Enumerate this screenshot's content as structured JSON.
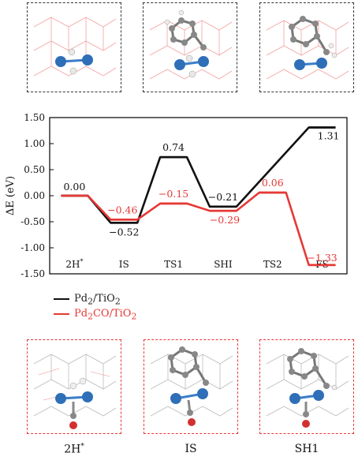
{
  "top_panels": [
    {
      "name": "pd2-tio2-2h",
      "border": "#333333",
      "molecule": "h2"
    },
    {
      "name": "pd2-tio2-ts",
      "border": "#333333",
      "molecule": "benzyl"
    },
    {
      "name": "pd2-tio2-fs",
      "border": "#333333",
      "molecule": "benzyl"
    }
  ],
  "bottom_panels": [
    {
      "name": "pd2co-2h",
      "border": "#e53935",
      "molecule": "h2-co",
      "caption": "2H",
      "caption_sup": "*"
    },
    {
      "name": "pd2co-is",
      "border": "#e53935",
      "molecule": "benzyl-co",
      "caption": "IS",
      "caption_sup": ""
    },
    {
      "name": "pd2co-sh1",
      "border": "#e53935",
      "molecule": "benzyl-co",
      "caption": "SH1",
      "caption_sup": ""
    }
  ],
  "legend": [
    {
      "label": "Pd",
      "sub": "2",
      "label2": "/TiO",
      "sub2": "2",
      "color": "#111111"
    },
    {
      "label": "Pd",
      "sub": "2",
      "label2": "CO/TiO",
      "sub2": "2",
      "color": "#e53935"
    }
  ],
  "chart_data": {
    "type": "line",
    "xlabel": "",
    "ylabel": "ΔE (eV)",
    "ylim": [
      -1.5,
      1.5
    ],
    "yticks": [
      "1.50",
      "1.00",
      "0.50",
      "0.00",
      "-0.50",
      "-1.00",
      "-1.50"
    ],
    "categories": [
      "2H*",
      "IS",
      "TS1",
      "SHI",
      "TS2",
      "FS"
    ],
    "series": [
      {
        "name": "Pd2/TiO2",
        "color": "#111111",
        "values": [
          0.0,
          -0.52,
          0.74,
          -0.21,
          null,
          1.31
        ],
        "labels": [
          "0.00",
          "-0.52",
          "0.74",
          "-0.21",
          "",
          "1.31"
        ]
      },
      {
        "name": "Pd2CO/TiO2",
        "color": "#e53935",
        "values": [
          0.0,
          -0.46,
          -0.15,
          -0.29,
          0.06,
          -1.33
        ],
        "labels": [
          "",
          "-0.46",
          "-0.15",
          "-0.29",
          "0.06",
          "-1.33"
        ]
      }
    ]
  }
}
